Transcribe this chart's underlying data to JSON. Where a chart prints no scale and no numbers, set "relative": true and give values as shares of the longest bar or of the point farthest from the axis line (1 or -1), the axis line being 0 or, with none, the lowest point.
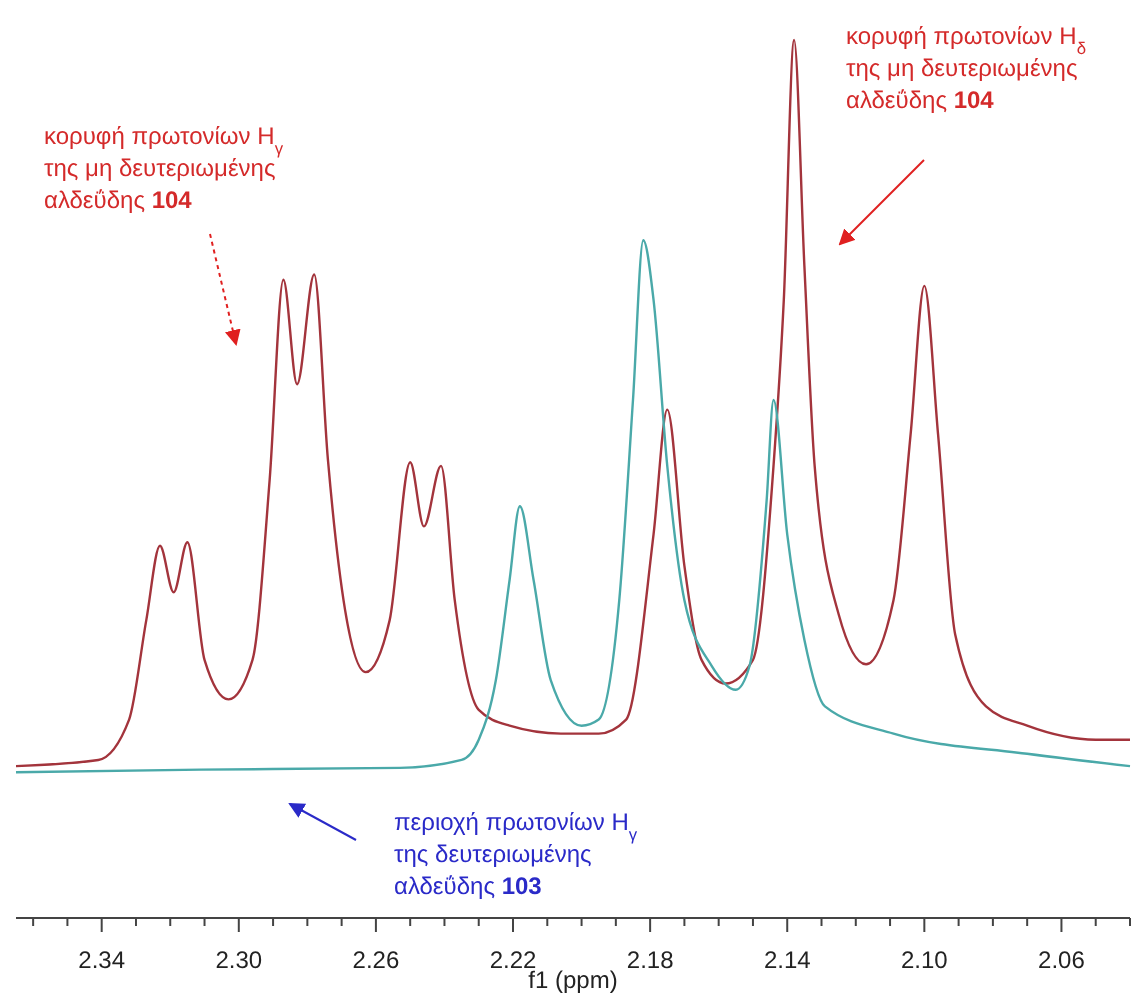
{
  "chart_data": {
    "type": "line",
    "relative": true,
    "xlabel": "f1 (ppm)",
    "xlim": [
      2.365,
      2.04
    ],
    "xticks": [
      {
        "value": 2.36,
        "label": null
      },
      {
        "value": 2.35,
        "label": null
      },
      2.34,
      {
        "value": 2.33,
        "label": null
      },
      {
        "value": 2.32,
        "label": null
      },
      {
        "value": 2.31,
        "label": null
      },
      {
        "value": 2.3,
        "label": "2.30"
      },
      {
        "value": 2.29,
        "label": null
      },
      {
        "value": 2.28,
        "label": null
      },
      {
        "value": 2.27,
        "label": null
      },
      2.26,
      {
        "value": 2.25,
        "label": null
      },
      {
        "value": 2.24,
        "label": null
      },
      {
        "value": 2.23,
        "label": null
      },
      2.22,
      {
        "value": 2.21,
        "label": null
      },
      {
        "value": 2.2,
        "label": null
      },
      {
        "value": 2.19,
        "label": null
      },
      2.18,
      {
        "value": 2.17,
        "label": null
      },
      {
        "value": 2.16,
        "label": null
      },
      {
        "value": 2.15,
        "label": null
      },
      2.14,
      {
        "value": 2.13,
        "label": null
      },
      {
        "value": 2.12,
        "label": null
      },
      {
        "value": 2.11,
        "label": null
      },
      {
        "value": 2.1,
        "label": "2.10"
      },
      {
        "value": 2.09,
        "label": null
      },
      {
        "value": 2.08,
        "label": null
      },
      {
        "value": 2.07,
        "label": null
      },
      2.06,
      {
        "value": 2.05,
        "label": null
      },
      {
        "value": 2.04,
        "label": null
      }
    ],
    "series": [
      {
        "color": "#a3343c",
        "x": [
          2.365,
          2.341,
          2.332,
          2.327,
          2.323,
          2.319,
          2.315,
          2.31,
          2.303,
          2.296,
          2.291,
          2.287,
          2.283,
          2.278,
          2.274,
          2.269,
          2.263,
          2.256,
          2.25,
          2.246,
          2.241,
          2.237,
          2.23,
          2.221,
          2.206,
          2.195,
          2.187,
          2.179,
          2.175,
          2.17,
          2.165,
          2.158,
          2.15,
          2.144,
          2.141,
          2.138,
          2.135,
          2.132,
          2.125,
          2.117,
          2.109,
          2.104,
          2.1,
          2.096,
          2.091,
          2.082,
          2.07,
          2.05,
          2.04
        ],
        "values": [
          0.173,
          0.18,
          0.226,
          0.339,
          0.424,
          0.371,
          0.428,
          0.294,
          0.249,
          0.294,
          0.499,
          0.727,
          0.608,
          0.733,
          0.522,
          0.351,
          0.28,
          0.339,
          0.519,
          0.446,
          0.515,
          0.362,
          0.237,
          0.219,
          0.21,
          0.21,
          0.226,
          0.437,
          0.579,
          0.401,
          0.294,
          0.267,
          0.294,
          0.515,
          0.704,
          1,
          0.743,
          0.515,
          0.346,
          0.289,
          0.362,
          0.551,
          0.72,
          0.551,
          0.323,
          0.241,
          0.219,
          0.203,
          0.203
        ]
      },
      {
        "color": "#4aa9a9",
        "x": [
          2.365,
          2.311,
          2.253,
          2.235,
          2.23,
          2.225,
          2.221,
          2.218,
          2.214,
          2.209,
          2.2,
          2.195,
          2.189,
          2.185,
          2.182,
          2.179,
          2.175,
          2.17,
          2.162,
          2.155,
          2.151,
          2.146,
          2.144,
          2.14,
          2.135,
          2.129,
          2.109,
          2.07,
          2.04
        ],
        "values": [
          0.166,
          0.169,
          0.171,
          0.18,
          0.203,
          0.271,
          0.385,
          0.469,
          0.385,
          0.271,
          0.219,
          0.226,
          0.362,
          0.59,
          0.772,
          0.704,
          0.515,
          0.362,
          0.287,
          0.26,
          0.287,
          0.476,
          0.59,
          0.437,
          0.317,
          0.241,
          0.21,
          0.187,
          0.173
        ]
      }
    ],
    "annotations": [
      "κορυφή πρωτονίων H$_{γ}$\nτης μη δευτεριωμένης\nαλδεΰδης 104",
      "κορυφή πρωτονίων H$_{δ}$\nτης μη δευτεριωμένης\nαλδεΰδης 104",
      "περιοχή πρωτονίων H$_{γ}$\nτης δευτεριωμένης\nαλδεΰδης 103"
    ]
  }
}
